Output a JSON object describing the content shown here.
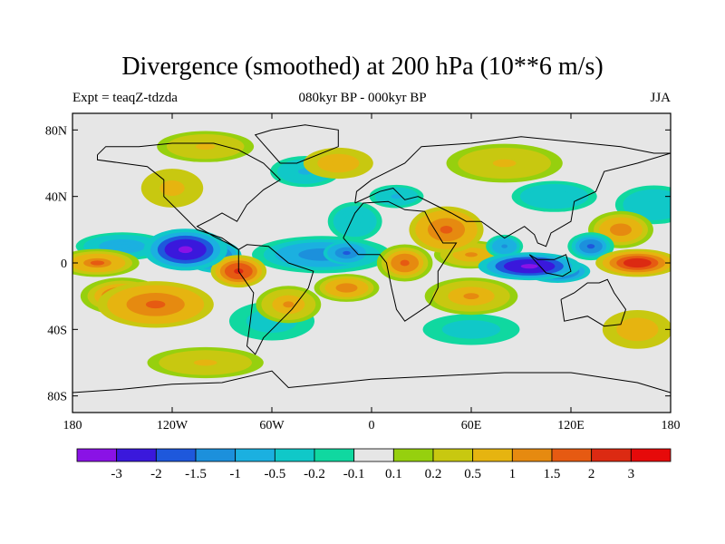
{
  "title": "Divergence (smoothed) at 200 hPa (10**6 m/s)",
  "left_label": "Expt = teaqZ-tdzda",
  "center_label": "080kyr BP - 000kyr BP",
  "right_label": "JJA",
  "chart_data": {
    "type": "heatmap",
    "title": "Divergence (smoothed) at 200 hPa (10**6 m/s)",
    "projection": "cylindrical equidistant",
    "x_range": [
      -180,
      180
    ],
    "y_range": [
      -90,
      90
    ],
    "x_ticks": [
      {
        "lon": -180,
        "label": "180"
      },
      {
        "lon": -120,
        "label": "120W"
      },
      {
        "lon": -60,
        "label": "60W"
      },
      {
        "lon": 0,
        "label": "0"
      },
      {
        "lon": 60,
        "label": "60E"
      },
      {
        "lon": 120,
        "label": "120E"
      },
      {
        "lon": 180,
        "label": "180"
      }
    ],
    "y_ticks": [
      {
        "lat": 80,
        "label": "80N"
      },
      {
        "lat": 40,
        "label": "40N"
      },
      {
        "lat": 0,
        "label": "0"
      },
      {
        "lat": -40,
        "label": "40S"
      },
      {
        "lat": -80,
        "label": "80S"
      }
    ],
    "levels": [
      -3,
      -2,
      -1.5,
      -1,
      -0.5,
      -0.2,
      -0.1,
      0.1,
      0.2,
      0.5,
      1,
      1.5,
      2,
      3
    ],
    "level_labels": [
      "-3",
      "-2",
      "-1.5",
      "-1",
      "-0.5",
      "-0.2",
      "-0.1",
      "0.1",
      "0.2",
      "0.5",
      "1",
      "1.5",
      "2",
      "3"
    ],
    "colors": [
      "#8a12e6",
      "#3a18dc",
      "#1e58dc",
      "#1c90dc",
      "#1bb0e0",
      "#10c8c8",
      "#10d8a0",
      "#e6e6e6",
      "#96d00e",
      "#c8c810",
      "#e6b410",
      "#e68a10",
      "#e65a12",
      "#dc2a12",
      "#e60a0a"
    ],
    "features": [
      {
        "lon": -112,
        "lat": 8,
        "rx": 18,
        "ry": 9,
        "v": -3.2
      },
      {
        "lon": -95,
        "lat": 4,
        "rx": 12,
        "ry": 7,
        "v": -2.2
      },
      {
        "lon": -30,
        "lat": 5,
        "rx": 30,
        "ry": 8,
        "v": -1.3
      },
      {
        "lon": -15,
        "lat": 6,
        "rx": 10,
        "ry": 5,
        "v": -1.8
      },
      {
        "lon": 95,
        "lat": -2,
        "rx": 22,
        "ry": 6,
        "v": -3.2
      },
      {
        "lon": 112,
        "lat": -5,
        "rx": 14,
        "ry": 5,
        "v": -2.5
      },
      {
        "lon": 132,
        "lat": 10,
        "rx": 10,
        "ry": 6,
        "v": -1.6
      },
      {
        "lon": 80,
        "lat": 10,
        "rx": 8,
        "ry": 5,
        "v": -1.2
      },
      {
        "lon": -150,
        "lat": 10,
        "rx": 20,
        "ry": 6,
        "v": -0.9
      },
      {
        "lon": 15,
        "lat": 40,
        "rx": 14,
        "ry": 6,
        "v": -0.6
      },
      {
        "lon": -10,
        "lat": 25,
        "rx": 14,
        "ry": 10,
        "v": -0.5
      },
      {
        "lon": 110,
        "lat": 40,
        "rx": 22,
        "ry": 8,
        "v": -0.5
      },
      {
        "lon": -40,
        "lat": 55,
        "rx": 18,
        "ry": 8,
        "v": -0.6
      },
      {
        "lon": 170,
        "lat": 35,
        "rx": 20,
        "ry": 10,
        "v": -0.5
      },
      {
        "lon": -60,
        "lat": -35,
        "rx": 22,
        "ry": 10,
        "v": -0.4
      },
      {
        "lon": 60,
        "lat": -40,
        "rx": 25,
        "ry": 8,
        "v": -0.4
      },
      {
        "lon": -150,
        "lat": -20,
        "rx": 18,
        "ry": 8,
        "v": 1.6
      },
      {
        "lon": -165,
        "lat": 0,
        "rx": 18,
        "ry": 6,
        "v": 1.5
      },
      {
        "lon": -130,
        "lat": -25,
        "rx": 25,
        "ry": 10,
        "v": 1.8
      },
      {
        "lon": -80,
        "lat": -5,
        "rx": 12,
        "ry": 7,
        "v": 2.4
      },
      {
        "lon": -50,
        "lat": -25,
        "rx": 14,
        "ry": 8,
        "v": 1.0
      },
      {
        "lon": -15,
        "lat": -15,
        "rx": 14,
        "ry": 6,
        "v": 1.3
      },
      {
        "lon": 20,
        "lat": 0,
        "rx": 12,
        "ry": 8,
        "v": 1.6
      },
      {
        "lon": 45,
        "lat": 20,
        "rx": 16,
        "ry": 10,
        "v": 1.7
      },
      {
        "lon": 60,
        "lat": 5,
        "rx": 16,
        "ry": 6,
        "v": 1.0
      },
      {
        "lon": 160,
        "lat": 0,
        "rx": 18,
        "ry": 6,
        "v": 2.8
      },
      {
        "lon": 150,
        "lat": 20,
        "rx": 14,
        "ry": 8,
        "v": 1.3
      },
      {
        "lon": 60,
        "lat": -20,
        "rx": 20,
        "ry": 8,
        "v": 1.0
      },
      {
        "lon": 160,
        "lat": -40,
        "rx": 18,
        "ry": 10,
        "v": 0.8
      },
      {
        "lon": -120,
        "lat": 45,
        "rx": 16,
        "ry": 10,
        "v": 0.7
      },
      {
        "lon": -20,
        "lat": 60,
        "rx": 18,
        "ry": 8,
        "v": 0.8
      },
      {
        "lon": -100,
        "lat": -60,
        "rx": 30,
        "ry": 8,
        "v": 0.5
      },
      {
        "lon": 80,
        "lat": 60,
        "rx": 30,
        "ry": 10,
        "v": 0.5
      },
      {
        "lon": -100,
        "lat": 70,
        "rx": 25,
        "ry": 8,
        "v": 0.6
      }
    ]
  }
}
